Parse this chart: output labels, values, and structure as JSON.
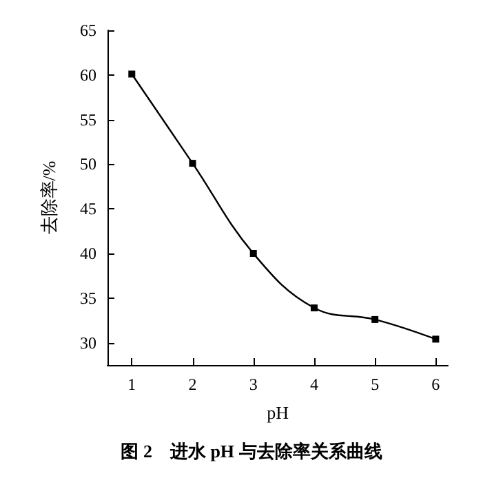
{
  "chart_data": {
    "type": "line",
    "title": "图 2　进水 pH 与去除率关系曲线",
    "xlabel": "pH",
    "ylabel": "去除率/%",
    "x": [
      1,
      2,
      3,
      4,
      5,
      6
    ],
    "series": [
      {
        "color": "#000000",
        "values": [
          60.1,
          50.1,
          40.0,
          33.9,
          32.6,
          30.4
        ]
      }
    ],
    "xlim": [
      0.6,
      6.2
    ],
    "xticks": [
      1,
      2,
      3,
      4,
      5,
      6
    ],
    "ylim": [
      27.5,
      65
    ],
    "yticks": [
      30,
      35,
      40,
      45,
      50,
      55,
      60,
      65
    ],
    "marker": "square",
    "line_style": "solid"
  }
}
